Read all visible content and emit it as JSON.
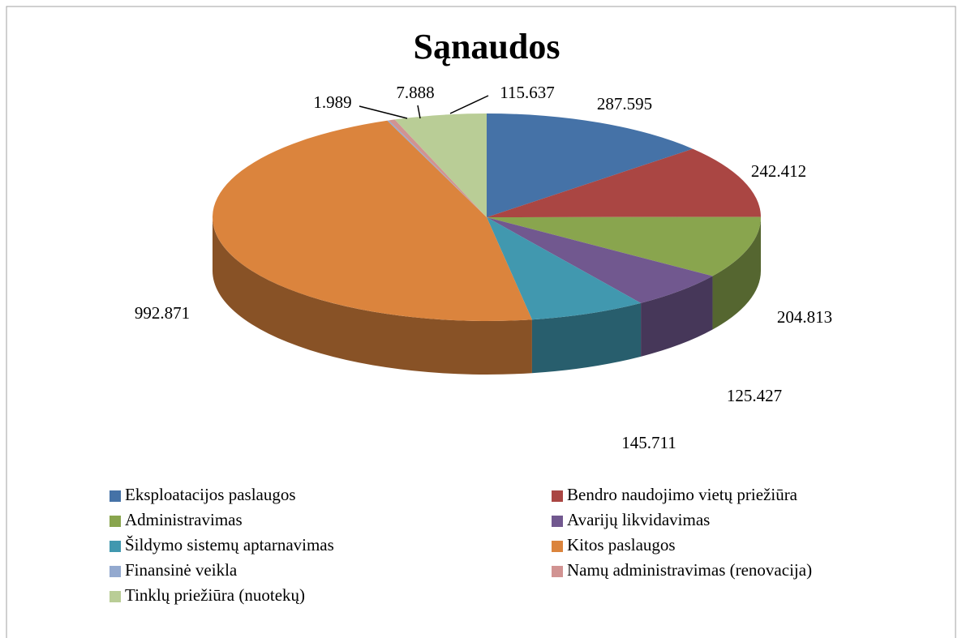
{
  "chart_data": {
    "type": "pie3d",
    "title": "Sąnaudos",
    "categories": [
      "Eksploatacijos paslaugos",
      "Bendro naudojimo vietų priežiūra",
      "Administravimas",
      "Avarijų likvidavimas",
      "Šildymo sistemų aptarnavimas",
      "Kitos paslaugos",
      "Finansinė veikla",
      "Namų administravimas (renovacija)",
      "Tinklų priežiūra (nuotekų)"
    ],
    "values": [
      287.595,
      242.412,
      204.813,
      125.427,
      145.711,
      992.871,
      1.989,
      7.888,
      115.637
    ],
    "colors": [
      "#4572a7",
      "#aa4643",
      "#89a54e",
      "#71588f",
      "#4198af",
      "#db843d",
      "#93a9cf",
      "#d19392",
      "#b9cd96"
    ],
    "legend": "bottom"
  }
}
